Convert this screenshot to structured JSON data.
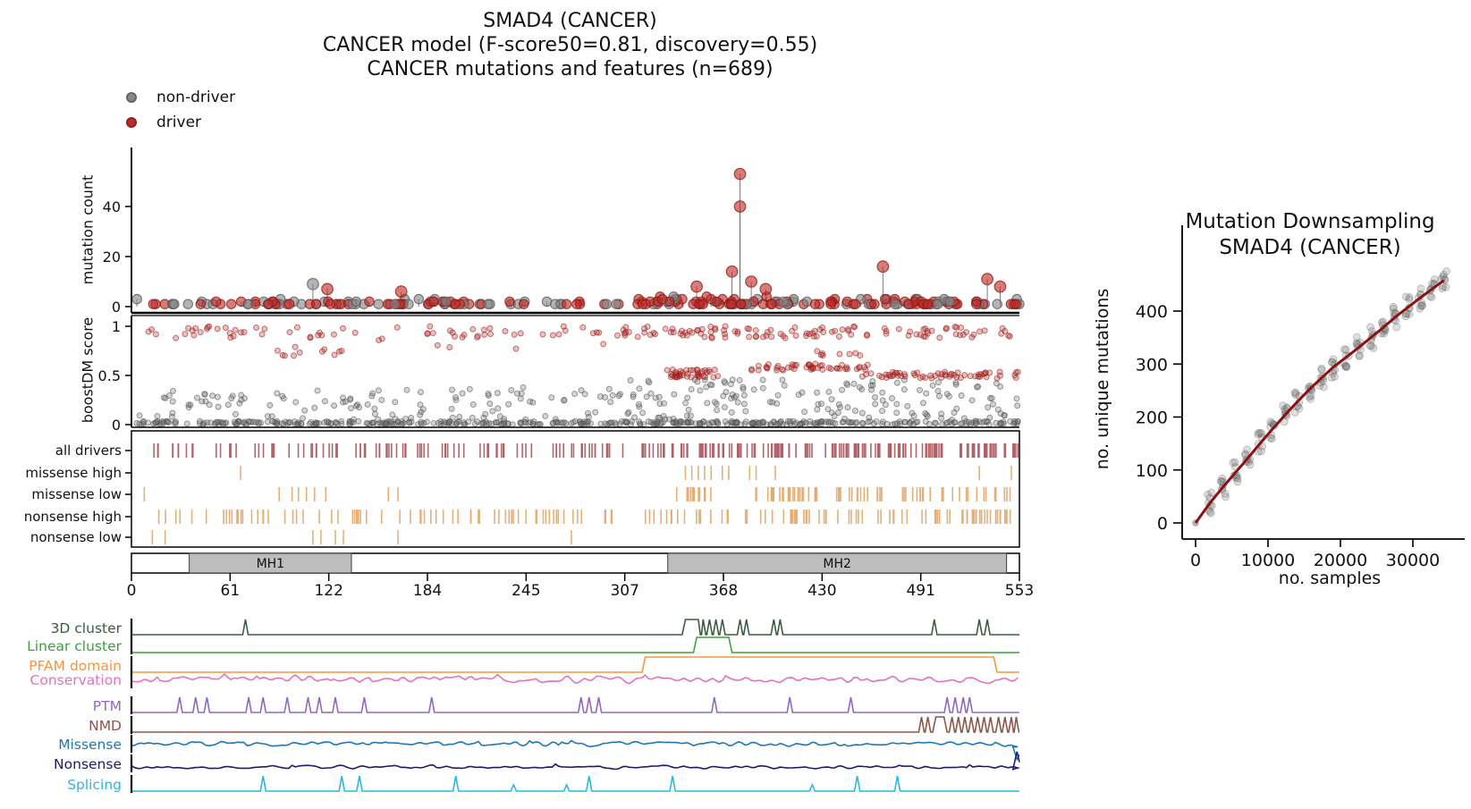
{
  "title": {
    "line1": "SMAD4 (CANCER)",
    "line2": "CANCER model (F-score50=0.81, discovery=0.55)",
    "line3": "CANCER mutations and features (n=689)"
  },
  "legend": {
    "items": [
      {
        "label": "non-driver",
        "color": "#868686"
      },
      {
        "label": "driver",
        "color": "#bf2b27"
      }
    ]
  },
  "colors": {
    "non_driver_fill": "#868686",
    "non_driver_edge": "#5a5a5a",
    "driver_fill": "#bf2b27",
    "driver_edge": "#8c1a17",
    "stem": "#666666",
    "axis": "#000000"
  },
  "chart_data": [
    {
      "id": "needle_plot",
      "type": "scatter",
      "ylabel": "mutation count",
      "xlim": [
        0,
        553
      ],
      "ylim": [
        0,
        55
      ],
      "yticks": [
        0,
        20,
        40
      ],
      "peaks": [
        [
          113,
          9,
          "non-driver"
        ],
        [
          122,
          7,
          "driver"
        ],
        [
          168,
          6,
          "driver"
        ],
        [
          352,
          8,
          "driver"
        ],
        [
          374,
          14,
          "driver"
        ],
        [
          379,
          40,
          "driver"
        ],
        [
          379,
          53,
          "driver"
        ],
        [
          386,
          10,
          "driver"
        ],
        [
          395,
          7,
          "driver"
        ],
        [
          468,
          16,
          "driver"
        ],
        [
          533,
          11,
          "driver"
        ],
        [
          541,
          8,
          "driver"
        ]
      ],
      "baseline_segments": [
        {
          "from": 2,
          "to": 310,
          "n": 100,
          "max_count": 3,
          "driver_frac": 0.45
        },
        {
          "from": 312,
          "to": 553,
          "n": 130,
          "max_count": 4,
          "driver_frac": 0.62
        }
      ]
    },
    {
      "id": "boostdm_scatter",
      "type": "scatter",
      "ylabel": "boostDM score",
      "xlim": [
        0,
        553
      ],
      "ylim": [
        0,
        1
      ],
      "yticks": [
        0,
        0.5,
        1
      ],
      "clusters": [
        {
          "class": "non-driver",
          "x": [
            2,
            553
          ],
          "y": [
            0.0,
            0.035
          ],
          "n": 420
        },
        {
          "class": "non-driver",
          "x": [
            5,
            310
          ],
          "y": [
            0.05,
            0.38
          ],
          "n": 120
        },
        {
          "class": "non-driver",
          "x": [
            310,
            553
          ],
          "y": [
            0.05,
            0.46
          ],
          "n": 150
        },
        {
          "class": "driver",
          "x": [
            8,
            300
          ],
          "y": [
            0.88,
            1.0
          ],
          "n": 60
        },
        {
          "class": "driver",
          "x": [
            300,
            553
          ],
          "y": [
            0.88,
            1.0
          ],
          "n": 115
        },
        {
          "class": "driver",
          "x": [
            87,
            140
          ],
          "y": [
            0.7,
            0.78
          ],
          "n": 10
        },
        {
          "class": "driver",
          "x": [
            20,
            300
          ],
          "y": [
            0.74,
            0.96
          ],
          "n": 10
        },
        {
          "class": "driver",
          "x": [
            333,
            366
          ],
          "y": [
            0.48,
            0.56
          ],
          "n": 42
        },
        {
          "class": "driver",
          "x": [
            386,
            465
          ],
          "y": [
            0.55,
            0.62
          ],
          "n": 48
        },
        {
          "class": "driver",
          "x": [
            455,
            553
          ],
          "y": [
            0.47,
            0.54
          ],
          "n": 60
        },
        {
          "class": "driver",
          "x": [
            400,
            480
          ],
          "y": [
            0.7,
            0.77
          ],
          "n": 8
        }
      ]
    },
    {
      "id": "driver_tracks",
      "type": "raster",
      "rows": [
        {
          "label": "all drivers",
          "color": "#ad6066",
          "segments": [
            {
              "from": 12,
              "to": 300,
              "n": 95
            },
            {
              "from": 318,
              "to": 553,
              "n": 155
            }
          ],
          "positions": [
            306
          ]
        },
        {
          "label": "missense high",
          "color": "#e3ab72",
          "segments": [],
          "positions": [
            68,
            345,
            349,
            353,
            357,
            361,
            368,
            372,
            385,
            389,
            401,
            528,
            548
          ]
        },
        {
          "label": "missense low",
          "color": "#e3ab72",
          "segments": [
            {
              "from": 335,
              "to": 362,
              "n": 14
            },
            {
              "from": 388,
              "to": 550,
              "n": 70
            }
          ],
          "positions": [
            8,
            92,
            100,
            104,
            109,
            114,
            121,
            160,
            166
          ]
        },
        {
          "label": "nonsense high",
          "color": "#e3ab72",
          "segments": [
            {
              "from": 15,
              "to": 300,
              "n": 72
            },
            {
              "from": 318,
              "to": 550,
              "n": 80
            }
          ],
          "positions": []
        },
        {
          "label": "nonsense low",
          "color": "#e3ab72",
          "segments": [],
          "positions": [
            13,
            21,
            113,
            118,
            127,
            132,
            166,
            274
          ]
        }
      ]
    },
    {
      "id": "protein_domains",
      "type": "domain-bar",
      "length": 553,
      "xticks": [
        0,
        61,
        122,
        184,
        245,
        307,
        368,
        430,
        491,
        553
      ],
      "domain_color": "#bdbdbd",
      "domains": [
        {
          "label": "MH1",
          "from": 36,
          "to": 137
        },
        {
          "label": "MH2",
          "from": 334,
          "to": 545
        }
      ]
    },
    {
      "id": "feature_tracks",
      "type": "line-tracks",
      "tracks": [
        {
          "label": "3D cluster",
          "color": "#3c5c41",
          "kind": "spikes",
          "spikes": [
            71,
            356,
            360,
            364,
            368,
            379,
            383,
            400,
            404,
            500,
            528,
            533
          ],
          "plateaus": [
            [
              345,
              353
            ]
          ]
        },
        {
          "label": "Linear cluster",
          "color": "#3da03c",
          "kind": "plateau",
          "plateaus": [
            [
              352,
              372
            ]
          ]
        },
        {
          "label": "PFAM domain",
          "color": "#f5953d",
          "kind": "plateau",
          "plateaus": [
            [
              320,
              537
            ]
          ]
        },
        {
          "label": "Conservation",
          "color": "#e56fc0",
          "kind": "noise",
          "base": 0.18,
          "amp": 0.3
        },
        {
          "label": "PTM",
          "color": "#9268bd",
          "kind": "spikes",
          "spikes": [
            30,
            40,
            47,
            73,
            82,
            97,
            110,
            117,
            127,
            145,
            187,
            280,
            285,
            291,
            363,
            410,
            448,
            508,
            513,
            518,
            522
          ],
          "plateaus": []
        },
        {
          "label": "NMD",
          "color": "#8c564b",
          "kind": "spikes",
          "spikes": [
            492,
            496,
            511,
            515,
            519,
            523,
            527,
            531,
            535,
            540,
            544,
            548,
            551
          ],
          "plateaus": [
            [
              501,
              506
            ]
          ]
        },
        {
          "label": "Missense",
          "color": "#1f77b4",
          "kind": "noise",
          "base": 0.25,
          "amp": 0.22,
          "end": "drop"
        },
        {
          "label": "Nonsense",
          "color": "#1b1b70",
          "kind": "noise",
          "base": 0.08,
          "amp": 0.14,
          "end": "spike"
        },
        {
          "label": "Splicing",
          "color": "#2ab7e0",
          "kind": "spikes",
          "spikes": [
            82,
            131,
            142,
            202,
            285,
            337,
            452,
            477
          ],
          "small_spikes": [
            238,
            271,
            424
          ],
          "plateaus": []
        }
      ]
    },
    {
      "id": "mutation_downsampling",
      "type": "scatter+line",
      "title": [
        "Mutation Downsampling",
        "SMAD4 (CANCER)"
      ],
      "xlabel": "no. samples",
      "ylabel": "no. unique mutations",
      "xticks": [
        0,
        10000,
        20000,
        30000
      ],
      "yticks": [
        0,
        100,
        200,
        300,
        400
      ],
      "xlim": [
        0,
        34500
      ],
      "ylim": [
        0,
        470
      ],
      "curve_color": "#8b1010",
      "point_color": "#6e6e6e",
      "curve": [
        [
          0,
          0
        ],
        [
          2000,
          38
        ],
        [
          3800,
          68
        ],
        [
          5500,
          95
        ],
        [
          7200,
          122
        ],
        [
          8900,
          150
        ],
        [
          10600,
          177
        ],
        [
          12300,
          203
        ],
        [
          14000,
          228
        ],
        [
          15700,
          252
        ],
        [
          17400,
          274
        ],
        [
          19100,
          295
        ],
        [
          20800,
          313
        ],
        [
          22500,
          331
        ],
        [
          24200,
          350
        ],
        [
          25900,
          369
        ],
        [
          27600,
          389
        ],
        [
          29300,
          407
        ],
        [
          31000,
          425
        ],
        [
          32700,
          442
        ],
        [
          34300,
          458
        ]
      ],
      "cluster_spread": {
        "n": 9,
        "dx": 700,
        "dy": 42
      }
    }
  ]
}
